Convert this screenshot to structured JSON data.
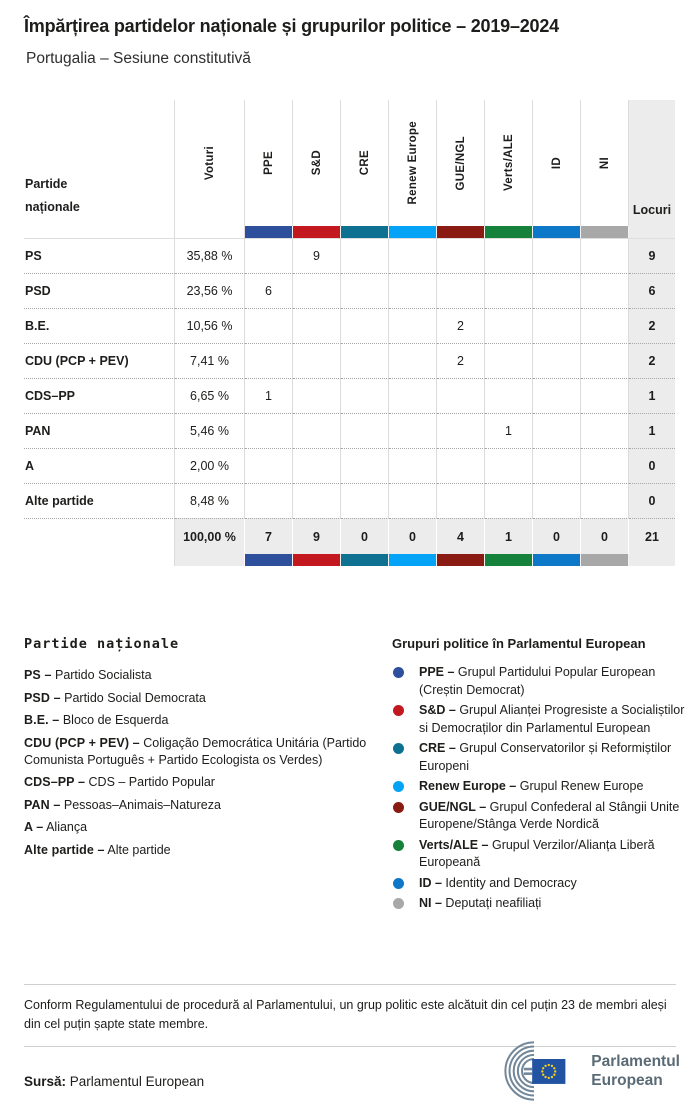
{
  "title": "Împărțirea partidelor naționale și grupurilor politice – 2019–2024",
  "subtitle": "Portugalia – Sesiune constitutivă",
  "table": {
    "party_col_header_line1": "Partide",
    "party_col_header_line2": "naționale",
    "votes_col_header": "Voturi",
    "seats_col_header": "Locuri",
    "groups": [
      {
        "id": "ppe",
        "label": "PPE",
        "color": "#2e4f9b"
      },
      {
        "id": "sd",
        "label": "S&D",
        "color": "#c3181f"
      },
      {
        "id": "cre",
        "label": "CRE",
        "color": "#0f7191"
      },
      {
        "id": "renew",
        "label": "Renew Europe",
        "color": "#04a3f5"
      },
      {
        "id": "gue",
        "label": "GUE/NGL",
        "color": "#8a1b12"
      },
      {
        "id": "verts",
        "label": "Verts/ALE",
        "color": "#15813a"
      },
      {
        "id": "id",
        "label": "ID",
        "color": "#0e78c8"
      },
      {
        "id": "ni",
        "label": "NI",
        "color": "#a8a8a8"
      }
    ],
    "rows": [
      {
        "party": "PS",
        "votes": "35,88 %",
        "seats_by_group": [
          "",
          "9",
          "",
          "",
          "",
          "",
          "",
          ""
        ],
        "total": "9"
      },
      {
        "party": "PSD",
        "votes": "23,56 %",
        "seats_by_group": [
          "6",
          "",
          "",
          "",
          "",
          "",
          "",
          ""
        ],
        "total": "6"
      },
      {
        "party": "B.E.",
        "votes": "10,56 %",
        "seats_by_group": [
          "",
          "",
          "",
          "",
          "2",
          "",
          "",
          ""
        ],
        "total": "2"
      },
      {
        "party": "CDU (PCP + PEV)",
        "votes": "7,41 %",
        "seats_by_group": [
          "",
          "",
          "",
          "",
          "2",
          "",
          "",
          ""
        ],
        "total": "2"
      },
      {
        "party": "CDS–PP",
        "votes": "6,65 %",
        "seats_by_group": [
          "1",
          "",
          "",
          "",
          "",
          "",
          "",
          ""
        ],
        "total": "1"
      },
      {
        "party": "PAN",
        "votes": "5,46 %",
        "seats_by_group": [
          "",
          "",
          "",
          "",
          "",
          "1",
          "",
          ""
        ],
        "total": "1"
      },
      {
        "party": "A",
        "votes": "2,00 %",
        "seats_by_group": [
          "",
          "",
          "",
          "",
          "",
          "",
          "",
          ""
        ],
        "total": "0"
      },
      {
        "party": "Alte partide",
        "votes": "8,48 %",
        "seats_by_group": [
          "",
          "",
          "",
          "",
          "",
          "",
          "",
          ""
        ],
        "total": "0"
      }
    ],
    "totals": {
      "votes": "100,00 %",
      "by_group": [
        "7",
        "9",
        "0",
        "0",
        "4",
        "1",
        "0",
        "0"
      ],
      "total": "21"
    }
  },
  "legend_parties": {
    "heading": "Partide naționale",
    "items": [
      {
        "abbr": "PS –",
        "name": "Partido Socialista"
      },
      {
        "abbr": "PSD –",
        "name": "Partido Social Democrata"
      },
      {
        "abbr": "B.E. –",
        "name": "Bloco de Esquerda"
      },
      {
        "abbr": "CDU (PCP + PEV) –",
        "name": "Coligação Democrática Unitária (Partido Comunista Português + Partido Ecologista os Verdes)"
      },
      {
        "abbr": "CDS–PP –",
        "name": "CDS – Partido Popular"
      },
      {
        "abbr": "PAN –",
        "name": "Pessoas–Animais–Natureza"
      },
      {
        "abbr": "A –",
        "name": "Aliança"
      },
      {
        "abbr": "Alte partide –",
        "name": "Alte partide"
      }
    ]
  },
  "legend_groups": {
    "heading": "Grupuri politice în Parlamentul European",
    "items": [
      {
        "abbr": "PPE –",
        "name": "Grupul Partidului Popular European (Creștin Democrat)"
      },
      {
        "abbr": "S&D –",
        "name": "Grupul Alianței Progresiste a Socialiștilor si Democraților din Parlamentul European"
      },
      {
        "abbr": "CRE –",
        "name": "Grupul Conservatorilor și Reformiștilor Europeni"
      },
      {
        "abbr": "Renew Europe –",
        "name": "Grupul Renew Europe"
      },
      {
        "abbr": "GUE/NGL –",
        "name": "Grupul Confederal al Stângii Unite Europene/Stânga Verde Nordică"
      },
      {
        "abbr": "Verts/ALE –",
        "name": "Grupul Verzilor/Alianța Liberă Europeană"
      },
      {
        "abbr": "ID –",
        "name": "Identity and Democracy"
      },
      {
        "abbr": "NI –",
        "name": "Deputați neafiliați"
      }
    ]
  },
  "footnote": "Conform Regulamentului de procedură al Parlamentului, un grup politic este alcătuit din cel puțin 23 de membri aleși din cel puțin șapte state membre.",
  "source": {
    "label": "Sursă:",
    "text": "Parlamentul European"
  },
  "logo": {
    "line1": "Parlamentul",
    "line2": "European",
    "arc_color": "#72879a",
    "flag_color": "#2253a2",
    "star_color": "#fdd313"
  },
  "chart_data": {
    "type": "table",
    "title": "Împărțirea partidelor naționale și grupurilor politice – 2019–2024",
    "subtitle": "Portugalia – Sesiune constitutivă",
    "columns": [
      "Partide naționale",
      "Voturi",
      "PPE",
      "S&D",
      "CRE",
      "Renew Europe",
      "GUE/NGL",
      "Verts/ALE",
      "ID",
      "NI",
      "Locuri"
    ],
    "rows": [
      [
        "PS",
        "35,88 %",
        null,
        9,
        null,
        null,
        null,
        null,
        null,
        null,
        9
      ],
      [
        "PSD",
        "23,56 %",
        6,
        null,
        null,
        null,
        null,
        null,
        null,
        null,
        6
      ],
      [
        "B.E.",
        "10,56 %",
        null,
        null,
        null,
        null,
        2,
        null,
        null,
        null,
        2
      ],
      [
        "CDU (PCP + PEV)",
        "7,41 %",
        null,
        null,
        null,
        null,
        2,
        null,
        null,
        null,
        2
      ],
      [
        "CDS–PP",
        "6,65 %",
        1,
        null,
        null,
        null,
        null,
        null,
        null,
        null,
        1
      ],
      [
        "PAN",
        "5,46 %",
        null,
        null,
        null,
        null,
        null,
        1,
        null,
        null,
        1
      ],
      [
        "A",
        "2,00 %",
        null,
        null,
        null,
        null,
        null,
        null,
        null,
        null,
        0
      ],
      [
        "Alte partide",
        "8,48 %",
        null,
        null,
        null,
        null,
        null,
        null,
        null,
        null,
        0
      ]
    ],
    "totals": [
      "",
      "100,00 %",
      7,
      9,
      0,
      0,
      4,
      1,
      0,
      0,
      21
    ],
    "group_colors": [
      "#2e4f9b",
      "#c3181f",
      "#0f7191",
      "#04a3f5",
      "#8a1b12",
      "#15813a",
      "#0e78c8",
      "#a8a8a8"
    ]
  }
}
